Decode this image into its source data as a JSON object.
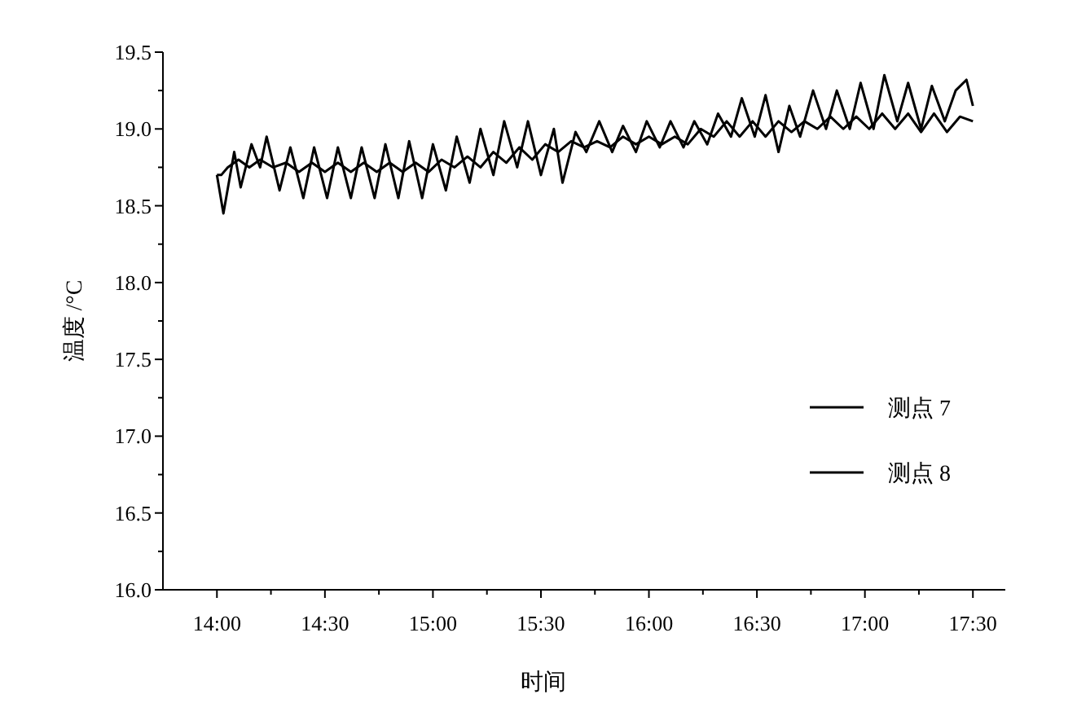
{
  "chart_data": {
    "type": "line",
    "xlabel": "时间",
    "ylabel": "温度 /°C",
    "legend": "right",
    "grid": false,
    "marker": "none",
    "line_style": "solid",
    "xlim": [
      13.75,
      17.65
    ],
    "ylim": [
      16.0,
      19.5
    ],
    "xticks": [
      {
        "value": 14,
        "label": "14:00"
      },
      {
        "value": 14.5,
        "label": "14:30"
      },
      {
        "value": 15,
        "label": "15:00"
      },
      {
        "value": 15.5,
        "label": "15:30"
      },
      {
        "value": 16,
        "label": "16:00"
      },
      {
        "value": 16.5,
        "label": "16:30"
      },
      {
        "value": 17,
        "label": "17:00"
      },
      {
        "value": 17.5,
        "label": "17:30"
      }
    ],
    "yticks": [
      {
        "value": 16.0,
        "label": "16.0"
      },
      {
        "value": 16.5,
        "label": "16.5"
      },
      {
        "value": 17.0,
        "label": "17.0"
      },
      {
        "value": 17.5,
        "label": "17.5"
      },
      {
        "value": 18.0,
        "label": "18.0"
      },
      {
        "value": 18.5,
        "label": "18.5"
      },
      {
        "value": 19.0,
        "label": "19.0"
      },
      {
        "value": 19.5,
        "label": "19.5"
      }
    ],
    "series": [
      {
        "name": "测点 7",
        "color": "#000000",
        "x": [
          14.0,
          14.03,
          14.08,
          14.11,
          14.16,
          14.2,
          14.23,
          14.29,
          14.34,
          14.4,
          14.45,
          14.51,
          14.56,
          14.62,
          14.67,
          14.73,
          14.78,
          14.84,
          14.89,
          14.95,
          15.0,
          15.06,
          15.11,
          15.17,
          15.22,
          15.28,
          15.33,
          15.39,
          15.44,
          15.5,
          15.56,
          15.6,
          15.66,
          15.71,
          15.77,
          15.83,
          15.88,
          15.94,
          15.99,
          16.05,
          16.1,
          16.16,
          16.21,
          16.27,
          16.32,
          16.38,
          16.43,
          16.49,
          16.54,
          16.6,
          16.65,
          16.7,
          16.76,
          16.82,
          16.87,
          16.93,
          16.98,
          17.04,
          17.09,
          17.15,
          17.2,
          17.26,
          17.31,
          17.37,
          17.42,
          17.47,
          17.5
        ],
        "values": [
          18.7,
          18.45,
          18.85,
          18.62,
          18.9,
          18.75,
          18.95,
          18.6,
          18.88,
          18.55,
          18.88,
          18.55,
          18.88,
          18.55,
          18.88,
          18.55,
          18.9,
          18.55,
          18.92,
          18.55,
          18.9,
          18.6,
          18.95,
          18.65,
          19.0,
          18.7,
          19.05,
          18.75,
          19.05,
          18.7,
          19.0,
          18.65,
          18.98,
          18.85,
          19.05,
          18.85,
          19.02,
          18.85,
          19.05,
          18.88,
          19.05,
          18.88,
          19.05,
          18.9,
          19.1,
          18.95,
          19.2,
          18.95,
          19.22,
          18.85,
          19.15,
          18.95,
          19.25,
          19.0,
          19.25,
          19.0,
          19.3,
          19.0,
          19.35,
          19.05,
          19.3,
          19.0,
          19.28,
          19.05,
          19.25,
          19.32,
          19.15
        ]
      },
      {
        "name": "测点 8",
        "color": "#000000",
        "x": [
          14.0,
          14.02,
          14.05,
          14.1,
          14.15,
          14.2,
          14.26,
          14.32,
          14.38,
          14.44,
          14.5,
          14.56,
          14.62,
          14.68,
          14.74,
          14.8,
          14.86,
          14.92,
          14.98,
          15.04,
          15.1,
          15.16,
          15.22,
          15.28,
          15.34,
          15.4,
          15.46,
          15.52,
          15.58,
          15.64,
          15.7,
          15.76,
          15.82,
          15.88,
          15.94,
          16.0,
          16.06,
          16.12,
          16.18,
          16.24,
          16.3,
          16.36,
          16.42,
          16.48,
          16.54,
          16.6,
          16.66,
          16.72,
          16.78,
          16.84,
          16.9,
          16.96,
          17.02,
          17.08,
          17.14,
          17.2,
          17.26,
          17.32,
          17.38,
          17.44,
          17.5
        ],
        "values": [
          18.7,
          18.7,
          18.75,
          18.8,
          18.75,
          18.8,
          18.75,
          18.78,
          18.72,
          18.78,
          18.72,
          18.78,
          18.72,
          18.78,
          18.72,
          18.78,
          18.72,
          18.78,
          18.72,
          18.8,
          18.75,
          18.82,
          18.75,
          18.85,
          18.78,
          18.88,
          18.8,
          18.9,
          18.85,
          18.92,
          18.88,
          18.92,
          18.88,
          18.95,
          18.9,
          18.95,
          18.9,
          18.95,
          18.9,
          19.0,
          18.95,
          19.05,
          18.95,
          19.05,
          18.95,
          19.05,
          18.98,
          19.05,
          19.0,
          19.08,
          19.0,
          19.08,
          19.0,
          19.1,
          19.0,
          19.1,
          18.98,
          19.1,
          18.98,
          19.08,
          19.05
        ]
      }
    ]
  }
}
